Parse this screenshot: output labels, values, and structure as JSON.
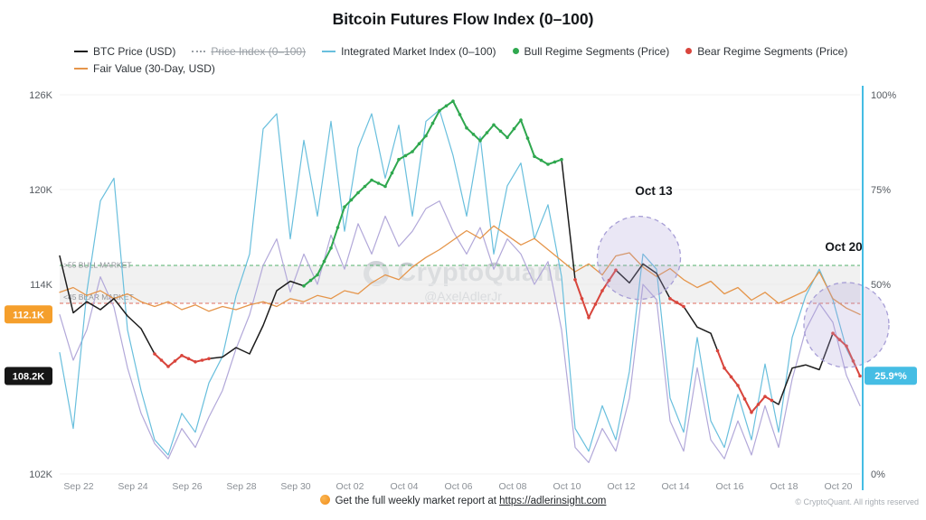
{
  "legend": {
    "items": [
      {
        "label": "BTC Price (USD)",
        "color": "#1c1c1c",
        "type": "line",
        "disabled": false
      },
      {
        "label": "Price Index (0–100)",
        "color": "#9aa0a6",
        "type": "line",
        "disabled": true
      },
      {
        "label": "Integrated Market Index (0–100)",
        "color": "#69bfdd",
        "type": "line",
        "disabled": false
      },
      {
        "label": "Bull Regime Segments (Price)",
        "color": "#2fa84f",
        "type": "dot",
        "disabled": false
      },
      {
        "label": "Bear Regime Segments (Price)",
        "color": "#d9453c",
        "type": "dot",
        "disabled": false
      },
      {
        "label": "Fair Value (30-Day, USD)",
        "color": "#e5954a",
        "type": "line",
        "disabled": false
      }
    ]
  },
  "watermark": {
    "brand": "CryptoQuant",
    "handle": "@AxelAdlerJr"
  },
  "footer": {
    "report_text": "Get the full weekly market report at",
    "report_link": "https://adlerinsight.com",
    "copyright": "© CryptoQuant. All rights reserved"
  },
  "chart_data": {
    "type": "line",
    "title": "Bitcoin Futures Flow Index (0–100)",
    "x_note": "day index from chart left edge; 0.5-day steps; the 'Sep 22' tick sits at t=0.7",
    "x": [
      0,
      0.5,
      1,
      1.5,
      2,
      2.5,
      3,
      3.5,
      4,
      4.5,
      5,
      5.5,
      6,
      6.5,
      7,
      7.5,
      8,
      8.5,
      9,
      9.5,
      10,
      10.5,
      11,
      11.5,
      12,
      12.5,
      13,
      13.5,
      14,
      14.5,
      15,
      15.5,
      16,
      16.5,
      17,
      17.5,
      18,
      18.5,
      19,
      19.5,
      20,
      20.5,
      21,
      21.5,
      22,
      22.5,
      23,
      23.5,
      24,
      24.5,
      25,
      25.5,
      26,
      26.5,
      27,
      27.5,
      28,
      28.5,
      29,
      29.5
    ],
    "x_ticks": [
      {
        "label": "Sep 22",
        "t": 0.7
      },
      {
        "label": "Sep 24",
        "t": 2.7
      },
      {
        "label": "Sep 26",
        "t": 4.7
      },
      {
        "label": "Sep 28",
        "t": 6.7
      },
      {
        "label": "Sep 30",
        "t": 8.7
      },
      {
        "label": "Oct 02",
        "t": 10.7
      },
      {
        "label": "Oct 04",
        "t": 12.7
      },
      {
        "label": "Oct 06",
        "t": 14.7
      },
      {
        "label": "Oct 08",
        "t": 16.7
      },
      {
        "label": "Oct 10",
        "t": 18.7
      },
      {
        "label": "Oct 12",
        "t": 20.7
      },
      {
        "label": "Oct 14",
        "t": 22.7
      },
      {
        "label": "Oct 16",
        "t": 24.7
      },
      {
        "label": "Oct 18",
        "t": 26.7
      },
      {
        "label": "Oct 20",
        "t": 28.7
      }
    ],
    "left_axis": {
      "unit": "K USD",
      "range": [
        102,
        126
      ],
      "ticks": [
        {
          "label": "126K",
          "value": 126
        },
        {
          "label": "120K",
          "value": 120
        },
        {
          "label": "114K",
          "value": 114
        },
        {
          "label": "102K",
          "value": 102
        }
      ]
    },
    "right_axis": {
      "unit": "%",
      "range": [
        0,
        100
      ],
      "color": "#45bde4",
      "grid": [
        100,
        75,
        50,
        25,
        0
      ],
      "ticks": [
        {
          "label": "100%",
          "value": 100
        },
        {
          "label": "75%",
          "value": 75
        },
        {
          "label": "50%",
          "value": 50
        },
        {
          "label": "0%",
          "value": 0
        }
      ]
    },
    "series": [
      {
        "id": "price_index",
        "name": "Price Index (0–100)",
        "axis": "right",
        "color": "#b2a8d9",
        "width": 1.2,
        "values": [
          42,
          30,
          38,
          52,
          44,
          28,
          16,
          8,
          4,
          12,
          7,
          15,
          22,
          33,
          42,
          55,
          62,
          48,
          58,
          50,
          63,
          54,
          66,
          58,
          68,
          60,
          64,
          70,
          72,
          64,
          58,
          65,
          54,
          62,
          58,
          50,
          56,
          38,
          7,
          3,
          12,
          6,
          20,
          50,
          46,
          14,
          6,
          28,
          9,
          4,
          14,
          5,
          18,
          7,
          25,
          38,
          45,
          40,
          26,
          18
        ]
      },
      {
        "id": "integrated_market_index",
        "name": "Integrated Market Index (0–100)",
        "axis": "right",
        "color": "#69bfdd",
        "width": 1.2,
        "values": [
          32,
          12,
          48,
          72,
          78,
          38,
          22,
          9,
          5,
          16,
          11,
          24,
          31,
          47,
          58,
          91,
          95,
          62,
          88,
          68,
          93,
          64,
          86,
          95,
          78,
          92,
          68,
          93,
          96,
          84,
          68,
          89,
          58,
          76,
          82,
          62,
          71,
          52,
          12,
          6,
          18,
          9,
          27,
          58,
          54,
          20,
          11,
          36,
          14,
          7,
          21,
          9,
          29,
          11,
          36,
          47,
          54,
          46,
          33,
          25.9
        ]
      },
      {
        "id": "fair_value",
        "name": "Fair Value (30-Day, USD)",
        "axis": "left",
        "color": "#e5954a",
        "width": 1.3,
        "values": [
          113.5,
          113.8,
          113.3,
          113.6,
          113.1,
          113.4,
          112.9,
          112.6,
          112.9,
          112.4,
          112.7,
          112.3,
          112.6,
          112.4,
          112.7,
          112.9,
          112.6,
          113.1,
          112.9,
          113.3,
          113.1,
          113.6,
          113.4,
          114.1,
          114.6,
          114.3,
          115.1,
          115.7,
          116.2,
          116.8,
          117.4,
          116.9,
          117.7,
          117.1,
          116.5,
          116.9,
          116.2,
          115.5,
          114.8,
          115.3,
          114.6,
          115.8,
          116.0,
          115.1,
          114.5,
          115.0,
          114.3,
          113.8,
          114.2,
          113.4,
          113.8,
          113.0,
          113.5,
          112.8,
          113.2,
          113.6,
          114.8,
          113.1,
          112.5,
          112.1
        ]
      },
      {
        "id": "btc_price",
        "name": "BTC Price (USD)",
        "axis": "left",
        "color": "#1c1c1c",
        "width": 1.5,
        "values": [
          115.8,
          112.2,
          112.9,
          112.4,
          113.1,
          112.0,
          111.2,
          109.6,
          108.8,
          109.5,
          109.1,
          109.3,
          109.4,
          110.0,
          109.6,
          111.4,
          113.6,
          114.2,
          113.9,
          114.6,
          116.3,
          118.9,
          119.8,
          120.6,
          120.2,
          121.9,
          122.4,
          123.4,
          125.0,
          125.6,
          123.9,
          123.1,
          124.1,
          123.3,
          124.4,
          122.1,
          121.6,
          121.9,
          114.3,
          111.9,
          113.6,
          114.9,
          114.1,
          115.3,
          114.7,
          113.1,
          112.6,
          111.3,
          110.9,
          108.7,
          107.6,
          105.9,
          106.9,
          106.4,
          108.7,
          108.9,
          108.6,
          110.9,
          110.1,
          108.2
        ]
      }
    ],
    "regimes": {
      "bull": {
        "color": "#2fa84f",
        "ranges": [
          [
            9,
            18.6
          ]
        ]
      },
      "bear": {
        "color": "#d9453c",
        "ranges": [
          [
            3.5,
            5.6
          ],
          [
            18.9,
            20.6
          ],
          [
            22.3,
            23.2
          ],
          [
            24.2,
            26.4
          ],
          [
            28.4,
            29.5
          ]
        ]
      }
    },
    "zones": {
      "band": {
        "from": 45,
        "to": 55,
        "fill": "#e8e8e8",
        "opacity": 0.6
      },
      "bull_line": {
        "value": 55,
        "label": ">55 BULL MARKET",
        "color": "#53b06b"
      },
      "bear_line": {
        "value": 45,
        "label": "<45 BEAR MARKET",
        "color": "#e06c5f"
      }
    },
    "annotations": [
      {
        "label": "Oct 13",
        "text_t": 21.9,
        "text_value": 73.6,
        "circle_t": 21.35,
        "circle_value": 57,
        "radius": 46
      },
      {
        "label": "Oct 20",
        "text_t": 28.9,
        "text_value": 58.8,
        "circle_t": 29.0,
        "circle_value": 39.3,
        "radius": 47
      }
    ],
    "badges": {
      "fair_value": {
        "label": "112.1K",
        "value": 112.1,
        "axis": "left",
        "color": "#f59f2c",
        "text_color": "#ffffff"
      },
      "btc_price": {
        "label": "108.2K",
        "value": 108.2,
        "axis": "left",
        "color": "#161616",
        "text_color": "#ffffff"
      },
      "market_index": {
        "label": "25.9*%",
        "value": 25.9,
        "axis": "right",
        "color": "#45bde4",
        "text_color": "#ffffff"
      }
    }
  }
}
